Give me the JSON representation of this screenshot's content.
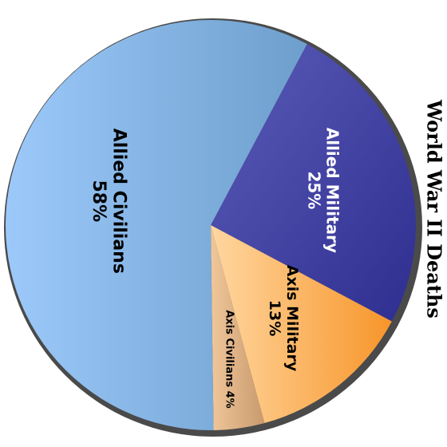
{
  "chart_data": {
    "type": "pie",
    "title": "World War II Deaths",
    "categories": [
      "Allied Military",
      "Axis Military",
      "Axis Civilians",
      "Allied Civilians"
    ],
    "values": [
      25,
      13,
      4,
      58
    ],
    "value_labels": [
      "25%",
      "13%",
      "4%",
      "58%"
    ],
    "colors": [
      "#3d3d9e",
      "#f7a547",
      "#d9a878",
      "#86b6e6"
    ],
    "legend": "none"
  }
}
